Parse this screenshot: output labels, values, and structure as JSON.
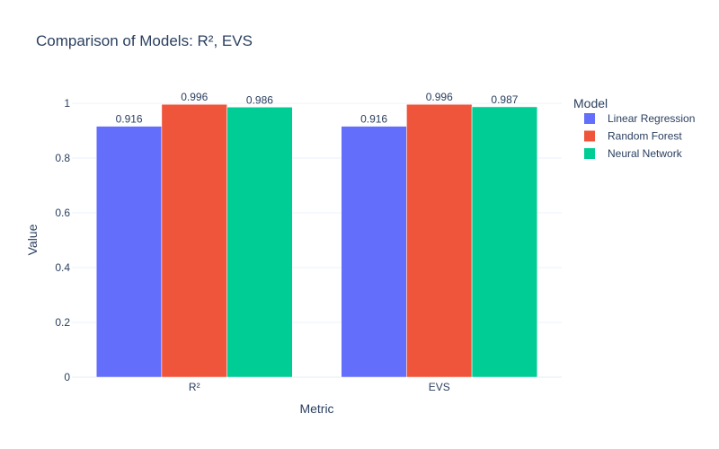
{
  "chart_data": {
    "type": "bar",
    "title": "Comparison of Models: R², EVS",
    "xlabel": "Metric",
    "ylabel": "Value",
    "categories": [
      "R²",
      "EVS"
    ],
    "series": [
      {
        "name": "Linear Regression",
        "values": [
          0.916,
          0.916
        ],
        "color": "#636efa"
      },
      {
        "name": "Random Forest",
        "values": [
          0.996,
          0.996
        ],
        "color": "#ef553b"
      },
      {
        "name": "Neural Network",
        "values": [
          0.986,
          0.987
        ],
        "color": "#00cc96"
      }
    ],
    "ylim": [
      0,
      1.0
    ],
    "yticks": [
      0,
      0.2,
      0.4,
      0.6,
      0.8,
      1
    ],
    "ytick_labels": [
      "0",
      "0.2",
      "0.4",
      "0.6",
      "0.8",
      "1"
    ],
    "grid": true,
    "legend": {
      "title": "Model",
      "position": "top-right"
    }
  },
  "colors": {
    "text": "#2a3f5f",
    "gridline": "#ebf0f8",
    "background": "#ffffff"
  }
}
